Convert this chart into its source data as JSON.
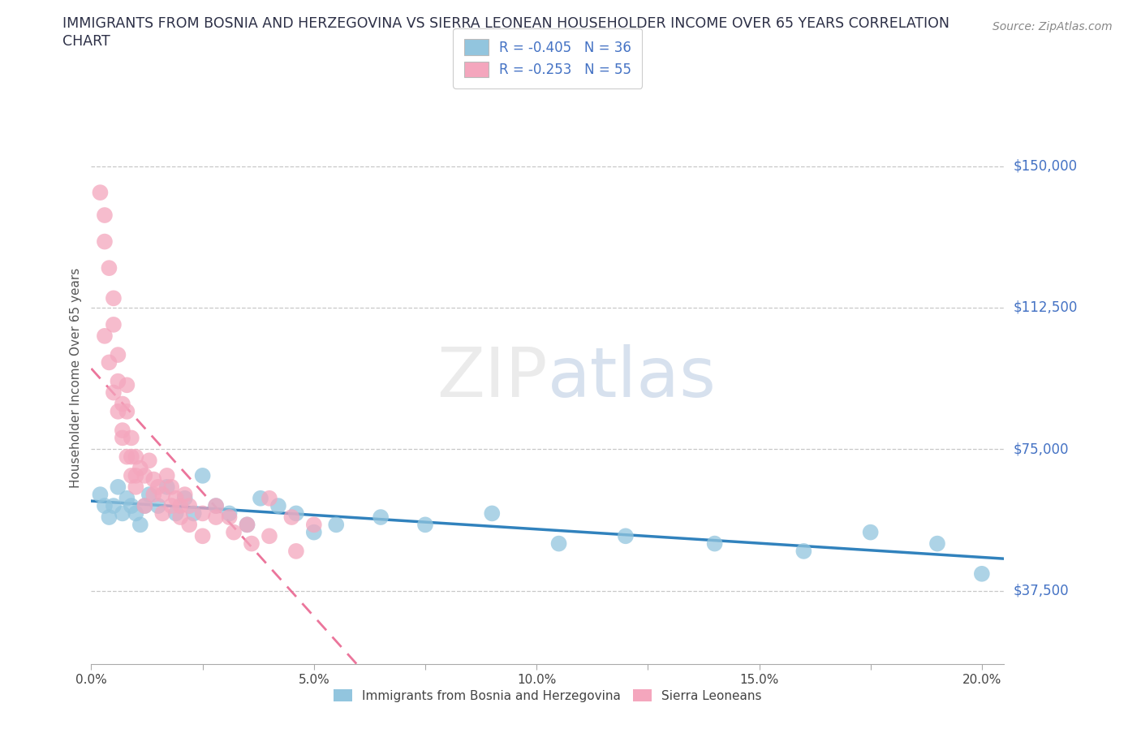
{
  "title_line1": "IMMIGRANTS FROM BOSNIA AND HERZEGOVINA VS SIERRA LEONEAN HOUSEHOLDER INCOME OVER 65 YEARS CORRELATION",
  "title_line2": "CHART",
  "source": "Source: ZipAtlas.com",
  "ylabel": "Householder Income Over 65 years",
  "xlim": [
    0.0,
    0.205
  ],
  "ylim": [
    18000,
    170000
  ],
  "yticks": [
    37500,
    75000,
    112500,
    150000
  ],
  "ytick_labels": [
    "$37,500",
    "$75,000",
    "$112,500",
    "$150,000"
  ],
  "xticks": [
    0.0,
    0.025,
    0.05,
    0.075,
    0.1,
    0.125,
    0.15,
    0.175,
    0.2
  ],
  "xtick_labels": [
    "0.0%",
    "",
    "5.0%",
    "",
    "10.0%",
    "",
    "15.0%",
    "",
    "20.0%"
  ],
  "watermark": "ZIPatlas",
  "blue_color": "#92c5de",
  "pink_color": "#f4a6bd",
  "blue_line_color": "#3182bd",
  "pink_line_color": "#e85d8a",
  "r_blue": -0.405,
  "n_blue": 36,
  "r_pink": -0.253,
  "n_pink": 55,
  "legend_label_blue": "Immigrants from Bosnia and Herzegovina",
  "legend_label_pink": "Sierra Leoneans",
  "blue_x": [
    0.002,
    0.003,
    0.004,
    0.005,
    0.006,
    0.007,
    0.008,
    0.009,
    0.01,
    0.011,
    0.012,
    0.013,
    0.015,
    0.017,
    0.019,
    0.021,
    0.023,
    0.025,
    0.028,
    0.031,
    0.035,
    0.038,
    0.042,
    0.046,
    0.05,
    0.055,
    0.065,
    0.075,
    0.09,
    0.105,
    0.12,
    0.14,
    0.16,
    0.175,
    0.19,
    0.2
  ],
  "blue_y": [
    63000,
    60000,
    57000,
    60000,
    65000,
    58000,
    62000,
    60000,
    58000,
    55000,
    60000,
    63000,
    60000,
    65000,
    58000,
    62000,
    58000,
    68000,
    60000,
    58000,
    55000,
    62000,
    60000,
    58000,
    53000,
    55000,
    57000,
    55000,
    58000,
    50000,
    52000,
    50000,
    48000,
    53000,
    50000,
    42000
  ],
  "pink_x": [
    0.002,
    0.003,
    0.003,
    0.004,
    0.005,
    0.005,
    0.006,
    0.006,
    0.007,
    0.007,
    0.008,
    0.008,
    0.009,
    0.009,
    0.01,
    0.01,
    0.011,
    0.012,
    0.013,
    0.014,
    0.015,
    0.016,
    0.017,
    0.018,
    0.019,
    0.02,
    0.021,
    0.022,
    0.025,
    0.028,
    0.031,
    0.035,
    0.04,
    0.045,
    0.05,
    0.003,
    0.004,
    0.005,
    0.006,
    0.007,
    0.008,
    0.009,
    0.01,
    0.012,
    0.014,
    0.016,
    0.018,
    0.02,
    0.022,
    0.025,
    0.028,
    0.032,
    0.036,
    0.04,
    0.046
  ],
  "pink_y": [
    143000,
    137000,
    130000,
    123000,
    115000,
    108000,
    100000,
    93000,
    87000,
    80000,
    92000,
    85000,
    78000,
    73000,
    68000,
    73000,
    70000,
    68000,
    72000,
    67000,
    65000,
    63000,
    68000,
    65000,
    62000,
    60000,
    63000,
    60000,
    58000,
    60000,
    57000,
    55000,
    62000,
    57000,
    55000,
    105000,
    98000,
    90000,
    85000,
    78000,
    73000,
    68000,
    65000,
    60000,
    63000,
    58000,
    60000,
    57000,
    55000,
    52000,
    57000,
    53000,
    50000,
    52000,
    48000
  ]
}
